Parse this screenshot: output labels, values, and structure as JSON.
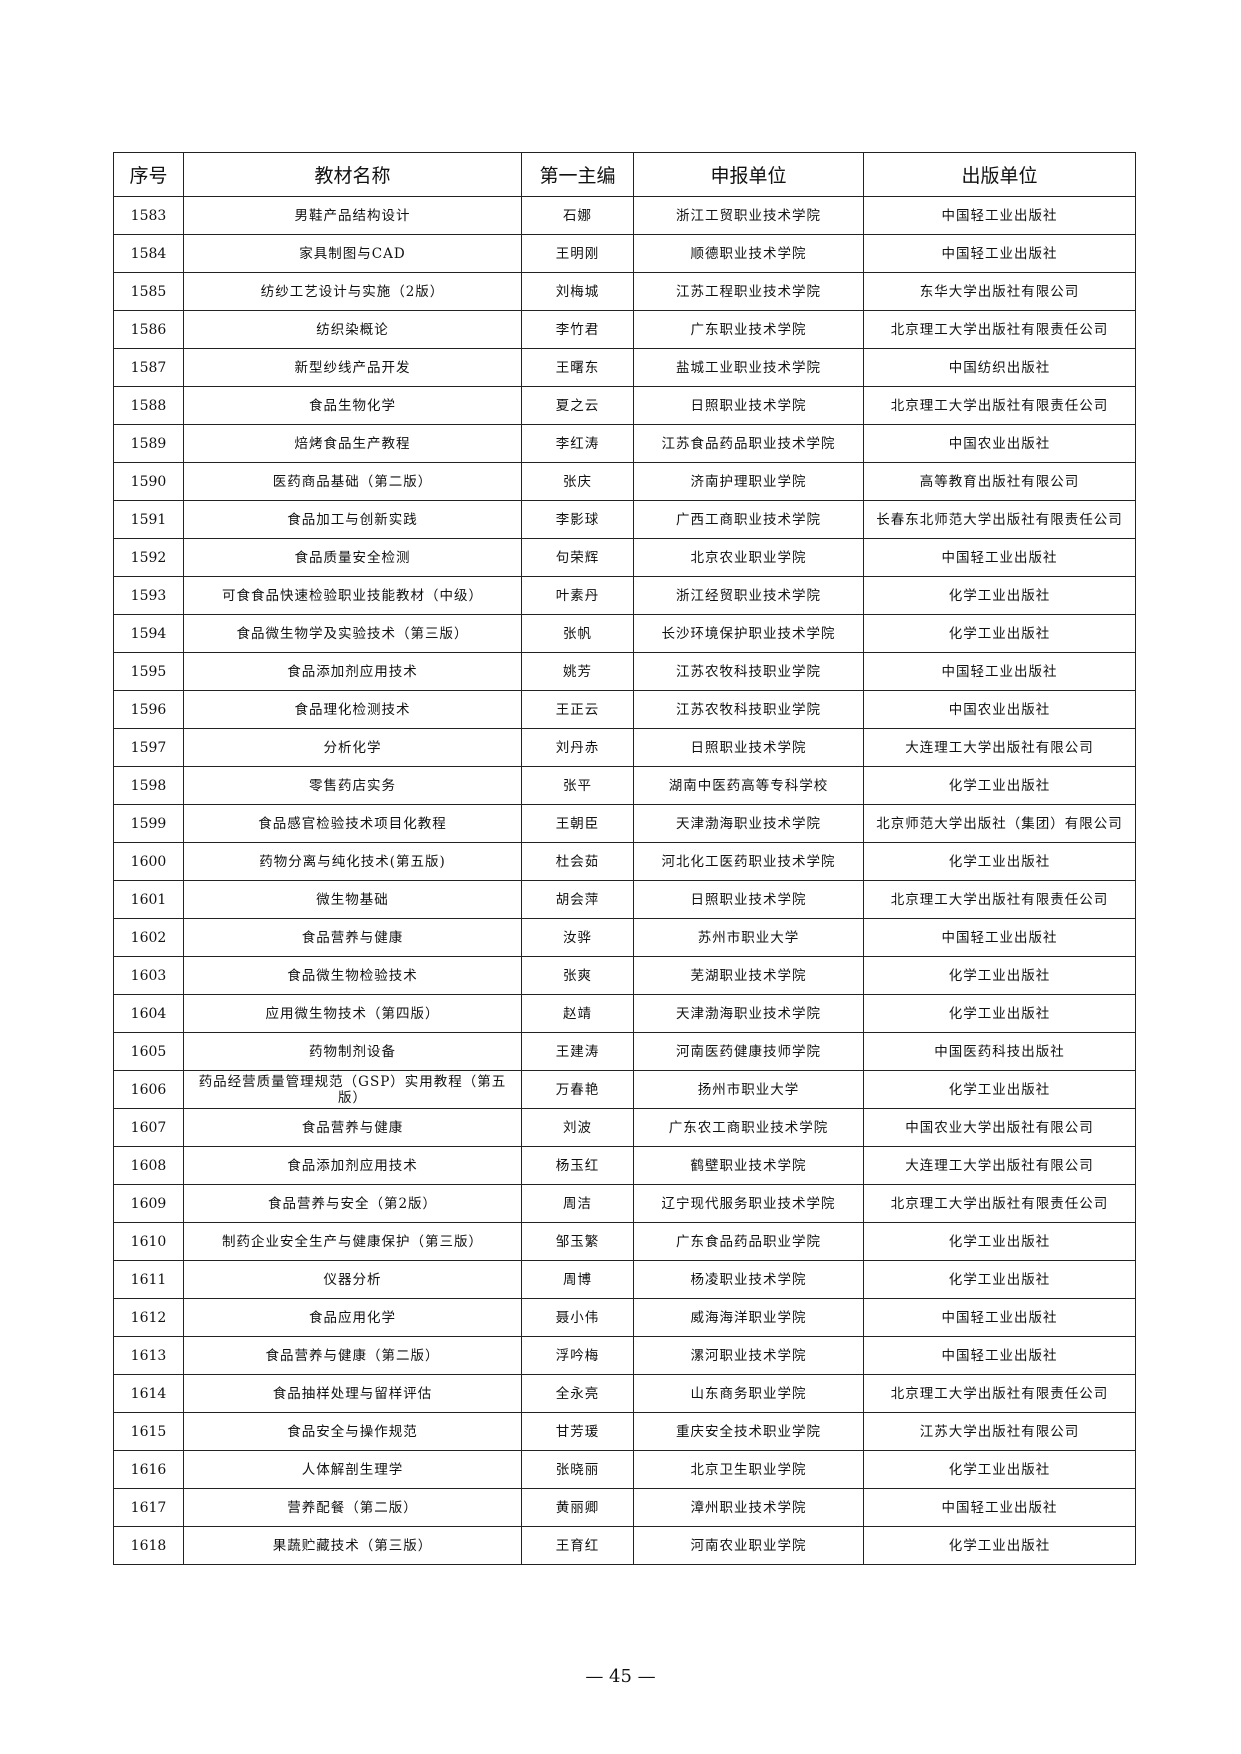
{
  "table": {
    "headers": [
      "序号",
      "教材名称",
      "第一主编",
      "申报单位",
      "出版单位"
    ],
    "rows": [
      [
        "1583",
        "男鞋产品结构设计",
        "石娜",
        "浙江工贸职业技术学院",
        "中国轻工业出版社"
      ],
      [
        "1584",
        "家具制图与CAD",
        "王明刚",
        "顺德职业技术学院",
        "中国轻工业出版社"
      ],
      [
        "1585",
        "纺纱工艺设计与实施（2版）",
        "刘梅城",
        "江苏工程职业技术学院",
        "东华大学出版社有限公司"
      ],
      [
        "1586",
        "纺织染概论",
        "李竹君",
        "广东职业技术学院",
        "北京理工大学出版社有限责任公司"
      ],
      [
        "1587",
        "新型纱线产品开发",
        "王曙东",
        "盐城工业职业技术学院",
        "中国纺织出版社"
      ],
      [
        "1588",
        "食品生物化学",
        "夏之云",
        "日照职业技术学院",
        "北京理工大学出版社有限责任公司"
      ],
      [
        "1589",
        "焙烤食品生产教程",
        "李红涛",
        "江苏食品药品职业技术学院",
        "中国农业出版社"
      ],
      [
        "1590",
        "医药商品基础（第二版）",
        "张庆",
        "济南护理职业学院",
        "高等教育出版社有限公司"
      ],
      [
        "1591",
        "食品加工与创新实践",
        "李影球",
        "广西工商职业技术学院",
        "长春东北师范大学出版社有限责任公司"
      ],
      [
        "1592",
        "食品质量安全检测",
        "句荣辉",
        "北京农业职业学院",
        "中国轻工业出版社"
      ],
      [
        "1593",
        "可食食品快速检验职业技能教材（中级）",
        "叶素丹",
        "浙江经贸职业技术学院",
        "化学工业出版社"
      ],
      [
        "1594",
        "食品微生物学及实验技术（第三版）",
        "张帆",
        "长沙环境保护职业技术学院",
        "化学工业出版社"
      ],
      [
        "1595",
        "食品添加剂应用技术",
        "姚芳",
        "江苏农牧科技职业学院",
        "中国轻工业出版社"
      ],
      [
        "1596",
        "食品理化检测技术",
        "王正云",
        "江苏农牧科技职业学院",
        "中国农业出版社"
      ],
      [
        "1597",
        "分析化学",
        "刘丹赤",
        "日照职业技术学院",
        "大连理工大学出版社有限公司"
      ],
      [
        "1598",
        "零售药店实务",
        "张平",
        "湖南中医药高等专科学校",
        "化学工业出版社"
      ],
      [
        "1599",
        "食品感官检验技术项目化教程",
        "王朝臣",
        "天津渤海职业技术学院",
        "北京师范大学出版社（集团）有限公司"
      ],
      [
        "1600",
        "药物分离与纯化技术(第五版)",
        "杜会茹",
        "河北化工医药职业技术学院",
        "化学工业出版社"
      ],
      [
        "1601",
        "微生物基础",
        "胡会萍",
        "日照职业技术学院",
        "北京理工大学出版社有限责任公司"
      ],
      [
        "1602",
        "食品营养与健康",
        "汝骅",
        "苏州市职业大学",
        "中国轻工业出版社"
      ],
      [
        "1603",
        "食品微生物检验技术",
        "张爽",
        "芜湖职业技术学院",
        "化学工业出版社"
      ],
      [
        "1604",
        "应用微生物技术（第四版）",
        "赵靖",
        "天津渤海职业技术学院",
        "化学工业出版社"
      ],
      [
        "1605",
        "药物制剂设备",
        "王建涛",
        "河南医药健康技师学院",
        "中国医药科技出版社"
      ],
      [
        "1606",
        "药品经营质量管理规范（GSP）实用教程（第五版）",
        "万春艳",
        "扬州市职业大学",
        "化学工业出版社"
      ],
      [
        "1607",
        "食品营养与健康",
        "刘波",
        "广东农工商职业技术学院",
        "中国农业大学出版社有限公司"
      ],
      [
        "1608",
        "食品添加剂应用技术",
        "杨玉红",
        "鹤壁职业技术学院",
        "大连理工大学出版社有限公司"
      ],
      [
        "1609",
        "食品营养与安全（第2版）",
        "周洁",
        "辽宁现代服务职业技术学院",
        "北京理工大学出版社有限责任公司"
      ],
      [
        "1610",
        "制药企业安全生产与健康保护（第三版）",
        "邹玉繁",
        "广东食品药品职业学院",
        "化学工业出版社"
      ],
      [
        "1611",
        "仪器分析",
        "周博",
        "杨凌职业技术学院",
        "化学工业出版社"
      ],
      [
        "1612",
        "食品应用化学",
        "聂小伟",
        "威海海洋职业学院",
        "中国轻工业出版社"
      ],
      [
        "1613",
        "食品营养与健康（第二版）",
        "浮吟梅",
        "漯河职业技术学院",
        "中国轻工业出版社"
      ],
      [
        "1614",
        "食品抽样处理与留样评估",
        "全永亮",
        "山东商务职业学院",
        "北京理工大学出版社有限责任公司"
      ],
      [
        "1615",
        "食品安全与操作规范",
        "甘芳瑗",
        "重庆安全技术职业学院",
        "江苏大学出版社有限公司"
      ],
      [
        "1616",
        "人体解剖生理学",
        "张晓丽",
        "北京卫生职业学院",
        "化学工业出版社"
      ],
      [
        "1617",
        "营养配餐（第二版）",
        "黄丽卿",
        "漳州职业技术学院",
        "中国轻工业出版社"
      ],
      [
        "1618",
        "果蔬贮藏技术（第三版）",
        "王育红",
        "河南农业职业学院",
        "化学工业出版社"
      ]
    ]
  },
  "footer": {
    "page_number": "— 45 —"
  }
}
